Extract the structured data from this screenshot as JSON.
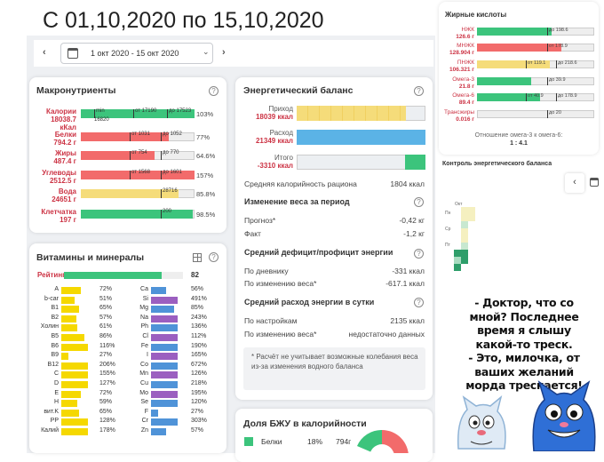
{
  "heading": "С 01,10,2020 по 15,10,2020",
  "date_range": "1 окт 2020 - 15 окт 2020",
  "macro": {
    "title": "Макронутриенты",
    "rows": [
      {
        "name": "Калории",
        "value": "18038.7",
        "unit": "кКал",
        "fill": 1.0,
        "color": "#3cc47c",
        "pct": "103%",
        "labels": [
          "min",
          "от 17190",
          "до 17523"
        ],
        "sub": "16820"
      },
      {
        "name": "Белки",
        "value": "794.2 г",
        "unit": "",
        "fill": 0.77,
        "color": "#f26b6b",
        "pct": "77%",
        "labels": [
          "от 1031",
          "до 1052"
        ]
      },
      {
        "name": "Жиры",
        "value": "487.4 г",
        "unit": "",
        "fill": 0.646,
        "color": "#f26b6b",
        "pct": "64.6%",
        "labels": [
          "от 754",
          "до 770"
        ]
      },
      {
        "name": "Углеводы",
        "value": "2512.5 г",
        "unit": "",
        "fill": 1.0,
        "color": "#f26b6b",
        "pct": "157%",
        "labels": [
          "от 1568",
          "до 1601"
        ]
      },
      {
        "name": "Вода",
        "value": "24651 г",
        "unit": "",
        "fill": 0.858,
        "color": "#f5dc7a",
        "pct": "85.8%",
        "labels": [
          "28716"
        ]
      },
      {
        "name": "Клетчатка",
        "value": "197 г",
        "unit": "",
        "fill": 0.985,
        "color": "#3cc47c",
        "pct": "98.5%",
        "labels": [
          "200"
        ]
      }
    ]
  },
  "vitamins": {
    "title": "Витамины и минералы",
    "rating_label": "Рейтинг",
    "rating_value": "82",
    "rating_fill": 0.82,
    "left": [
      {
        "name": "A",
        "pct": "72%",
        "fill": 0.72
      },
      {
        "name": "b-car",
        "pct": "51%",
        "fill": 0.51
      },
      {
        "name": "B1",
        "pct": "65%",
        "fill": 0.65
      },
      {
        "name": "B2",
        "pct": "57%",
        "fill": 0.57
      },
      {
        "name": "Холин",
        "pct": "61%",
        "fill": 0.61
      },
      {
        "name": "B5",
        "pct": "86%",
        "fill": 0.86
      },
      {
        "name": "B6",
        "pct": "116%",
        "fill": 1.0
      },
      {
        "name": "B9",
        "pct": "27%",
        "fill": 0.27
      },
      {
        "name": "B12",
        "pct": "206%",
        "fill": 1.0
      },
      {
        "name": "C",
        "pct": "155%",
        "fill": 1.0
      },
      {
        "name": "D",
        "pct": "127%",
        "fill": 1.0
      },
      {
        "name": "E",
        "pct": "72%",
        "fill": 0.72
      },
      {
        "name": "H",
        "pct": "59%",
        "fill": 0.59
      },
      {
        "name": "вит.K",
        "pct": "65%",
        "fill": 0.65
      },
      {
        "name": "PP",
        "pct": "128%",
        "fill": 1.0
      },
      {
        "name": "Калий",
        "pct": "178%",
        "fill": 1.0
      }
    ],
    "right": [
      {
        "name": "Ca",
        "pct": "56%",
        "fill": 0.56
      },
      {
        "name": "Si",
        "pct": "491%",
        "fill": 1.0
      },
      {
        "name": "Mg",
        "pct": "85%",
        "fill": 0.85
      },
      {
        "name": "Na",
        "pct": "243%",
        "fill": 1.0
      },
      {
        "name": "Ph",
        "pct": "136%",
        "fill": 1.0
      },
      {
        "name": "Cl",
        "pct": "112%",
        "fill": 1.0
      },
      {
        "name": "Fe",
        "pct": "190%",
        "fill": 1.0
      },
      {
        "name": "I",
        "pct": "165%",
        "fill": 1.0
      },
      {
        "name": "Co",
        "pct": "672%",
        "fill": 1.0
      },
      {
        "name": "Mn",
        "pct": "126%",
        "fill": 1.0
      },
      {
        "name": "Cu",
        "pct": "218%",
        "fill": 1.0
      },
      {
        "name": "Mo",
        "pct": "195%",
        "fill": 1.0
      },
      {
        "name": "Se",
        "pct": "120%",
        "fill": 1.0
      },
      {
        "name": "F",
        "pct": "27%",
        "fill": 0.27
      },
      {
        "name": "Cr",
        "pct": "303%",
        "fill": 1.0
      },
      {
        "name": "Zn",
        "pct": "57%",
        "fill": 0.57
      }
    ]
  },
  "energy": {
    "title": "Энергетический баланс",
    "rows": [
      {
        "name": "Приход",
        "value": "18039 ккал",
        "fill": 0.85,
        "color": "#f5dc7a"
      },
      {
        "name": "Расход",
        "value": "21349 ккал",
        "fill": 1.0,
        "color": "#5bb3e6"
      },
      {
        "name": "Итого",
        "value": "-3310 ккал",
        "fill": 0.16,
        "color": "#3cc47c"
      }
    ],
    "avg_label": "Средняя калорийность рациона",
    "avg_value": "1804 ккал",
    "weight_title": "Изменение веса за период",
    "forecast_label": "Прогноз*",
    "forecast_value": "-0,42 кг",
    "fact_label": "Факт",
    "fact_value": "-1,2 кг",
    "deficit_title": "Средний дефицит/профицит энергии",
    "diary_label": "По дневнику",
    "diary_value": "-331 ккал",
    "byweight_label": "По изменению веса*",
    "byweight_value": "-617.1 ккал",
    "spend_title": "Средний расход энергии в сутки",
    "settings_label": "По настройкам",
    "settings_value": "2135 ккал",
    "byweight2_label": "По изменению веса*",
    "byweight2_value": "недостаточно данных",
    "note": "* Расчёт не учитывает возможные колебания веса из-за изменения водного баланса"
  },
  "bju": {
    "title": "Доля БЖУ в калорийности",
    "row_name": "Белки",
    "row_pct": "18%",
    "row_val": "794г"
  },
  "fatty": {
    "title": "Жирные кислоты",
    "rows": [
      {
        "name": "НЖК",
        "value": "126.6 г",
        "fill": 0.64,
        "color": "#3cc47c",
        "labels": [
          "до 198.6"
        ]
      },
      {
        "name": "МНЖК",
        "value": "128.904 г",
        "fill": 0.72,
        "color": "#f26b6b",
        "labels": [
          "от 178.9"
        ]
      },
      {
        "name": "ПНЖК",
        "value": "106.321 г",
        "fill": 0.62,
        "color": "#f5dc7a",
        "labels": [
          "от 119.1",
          "до 218.6"
        ]
      },
      {
        "name": "Омега-3",
        "value": "21.8 г",
        "fill": 0.46,
        "color": "#3cc47c",
        "labels": [
          "до 39.9"
        ]
      },
      {
        "name": "Омега-6",
        "value": "89.4 г",
        "fill": 0.54,
        "color": "#3cc47c",
        "labels": [
          "от 40.9",
          "до 178.9"
        ]
      },
      {
        "name": "Трансжиры",
        "value": "0.016 г",
        "fill": 0.0,
        "color": "#3cc47c",
        "labels": [
          "до 20"
        ]
      }
    ],
    "ratio_label": "Отношение омега-3 к омега-6:",
    "ratio_value": "1 : 4.1"
  },
  "control": {
    "title": "Контроль энергетического баланса",
    "month": "Окт",
    "days": [
      "Пн",
      "Ср",
      "Пт"
    ]
  },
  "joke": {
    "lines": [
      "- Доктор, что со",
      "мной? Последнее",
      "время я слышу",
      "какой-то треск.",
      "- Это, милочка, от",
      "ваших желаний",
      "морда трескается!"
    ]
  },
  "colors": {
    "green": "#3cc47c",
    "red": "#f26b6b",
    "yellow": "#f5dc7a",
    "blue": "#5bb3e6",
    "vit_yellow": "#f5d800",
    "vit_blue": "#4f93d8",
    "vit_purple": "#9b5fc0"
  }
}
